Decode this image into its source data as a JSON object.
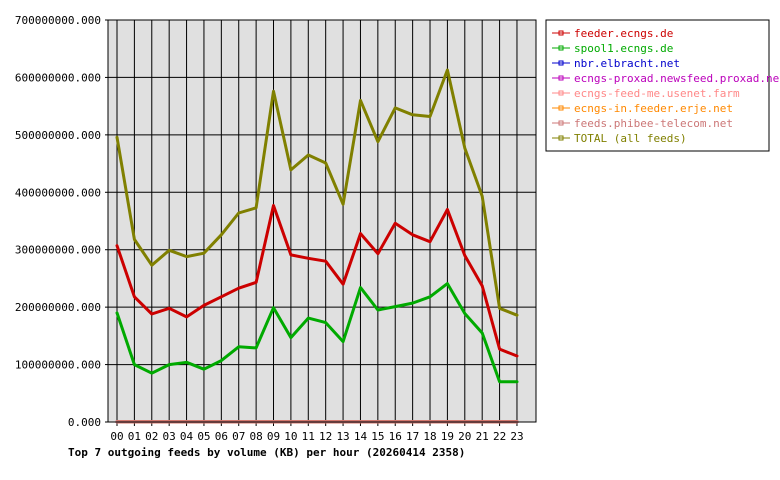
{
  "chart_data": {
    "type": "line",
    "title": "Top 7 outgoing feeds by volume (KB) per hour (20260414 2358)",
    "xlabel": "",
    "ylabel": "",
    "categories": [
      "00",
      "01",
      "02",
      "03",
      "04",
      "05",
      "06",
      "07",
      "08",
      "09",
      "10",
      "11",
      "12",
      "13",
      "14",
      "15",
      "16",
      "17",
      "18",
      "19",
      "20",
      "21",
      "22",
      "23"
    ],
    "ylim": [
      0,
      700000000
    ],
    "yticks": [
      0,
      100000000,
      200000000,
      300000000,
      400000000,
      500000000,
      600000000,
      700000000
    ],
    "ytick_labels": [
      "0.000",
      "100000000.000",
      "200000000.000",
      "300000000.000",
      "400000000.000",
      "500000000.000",
      "600000000.000",
      "700000000.000"
    ],
    "grid": true,
    "legend_position": "right",
    "series": [
      {
        "name": "feeder.ecngs.de",
        "color": "#cc0000",
        "values": [
          307000000,
          218000000,
          188000000,
          198000000,
          183000000,
          203000000,
          218000000,
          233000000,
          243000000,
          377000000,
          291000000,
          285000000,
          280000000,
          240000000,
          328000000,
          293000000,
          346000000,
          326000000,
          314000000,
          370000000,
          290000000,
          237000000,
          127000000,
          115000000
        ]
      },
      {
        "name": "spool1.ecngs.de",
        "color": "#00aa00",
        "values": [
          190000000,
          100000000,
          85000000,
          100000000,
          104000000,
          92000000,
          107000000,
          131000000,
          129000000,
          199000000,
          147000000,
          181000000,
          173000000,
          140000000,
          234000000,
          195000000,
          201000000,
          207000000,
          218000000,
          241000000,
          189000000,
          155000000,
          70000000,
          70000000
        ]
      },
      {
        "name": "nbr.elbracht.net",
        "color": "#0000cc",
        "values": [
          200000,
          200000,
          200000,
          200000,
          200000,
          200000,
          200000,
          200000,
          200000,
          200000,
          200000,
          200000,
          200000,
          200000,
          200000,
          200000,
          200000,
          200000,
          200000,
          200000,
          200000,
          200000,
          200000,
          200000
        ]
      },
      {
        "name": "ecngs-proxad.newsfeed.proxad.net",
        "color": "#bb00bb",
        "values": [
          300000,
          300000,
          300000,
          300000,
          300000,
          300000,
          300000,
          300000,
          300000,
          300000,
          300000,
          300000,
          300000,
          300000,
          300000,
          300000,
          300000,
          300000,
          300000,
          300000,
          300000,
          300000,
          300000,
          300000
        ]
      },
      {
        "name": "ecngs-feed-me.usenet.farm",
        "color": "#ff8888",
        "values": [
          400000,
          400000,
          400000,
          400000,
          400000,
          400000,
          400000,
          400000,
          400000,
          400000,
          400000,
          400000,
          400000,
          400000,
          400000,
          400000,
          400000,
          400000,
          400000,
          400000,
          400000,
          400000,
          400000,
          400000
        ]
      },
      {
        "name": "ecngs-in.feeder.erje.net",
        "color": "#ff8800",
        "values": [
          300000,
          300000,
          300000,
          300000,
          300000,
          300000,
          300000,
          300000,
          300000,
          300000,
          300000,
          300000,
          300000,
          300000,
          300000,
          300000,
          300000,
          300000,
          300000,
          300000,
          300000,
          300000,
          300000,
          300000
        ]
      },
      {
        "name": "feeds.phibee-telecom.net",
        "color": "#cc7777",
        "values": [
          500000,
          500000,
          500000,
          500000,
          500000,
          500000,
          500000,
          500000,
          500000,
          500000,
          500000,
          500000,
          500000,
          500000,
          500000,
          500000,
          500000,
          500000,
          500000,
          500000,
          500000,
          500000,
          500000,
          500000
        ]
      },
      {
        "name": "TOTAL (all feeds)",
        "color": "#808000",
        "values": [
          496000000,
          318000000,
          273000000,
          299000000,
          288000000,
          294000000,
          326000000,
          364000000,
          373000000,
          576000000,
          439000000,
          465000000,
          451000000,
          379000000,
          560000000,
          488000000,
          547000000,
          535000000,
          532000000,
          613000000,
          477000000,
          393000000,
          198000000,
          186000000
        ]
      }
    ]
  }
}
